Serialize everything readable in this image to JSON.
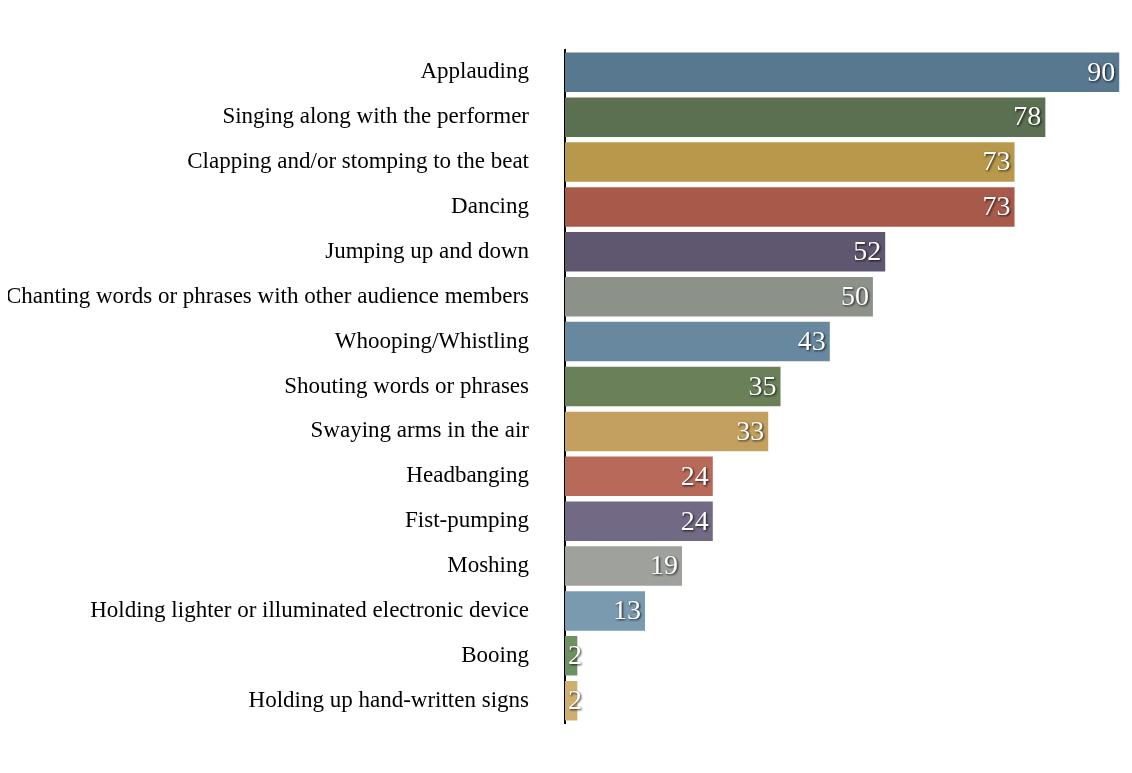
{
  "chart_data": {
    "type": "bar",
    "orientation": "horizontal",
    "data_labels": true,
    "grid": false,
    "legend": false,
    "categories": [
      "Applauding",
      "Singing along with the performer",
      "Clapping and/or stomping to the beat",
      "Dancing",
      "Jumping up and down",
      "Chanting words or phrases with other audience members",
      "Whooping/Whistling",
      "Shouting words or phrases",
      "Swaying arms in the air",
      "Headbanging",
      "Fist-pumping",
      "Moshing",
      "Holding lighter or illuminated electronic device",
      "Booing",
      "Holding up hand-written signs"
    ],
    "values": [
      90,
      78,
      73,
      73,
      52,
      50,
      43,
      35,
      33,
      24,
      24,
      19,
      13,
      2,
      2
    ],
    "colors": [
      "#587890",
      "#5a7050",
      "#b8984a",
      "#a85a4a",
      "#5f5670",
      "#8c918a",
      "#6888a0",
      "#6a8058",
      "#c4a060",
      "#b86a5a",
      "#726a84",
      "#9fa29c",
      "#7a9ab0",
      "#6f9060",
      "#d0ae70"
    ]
  }
}
